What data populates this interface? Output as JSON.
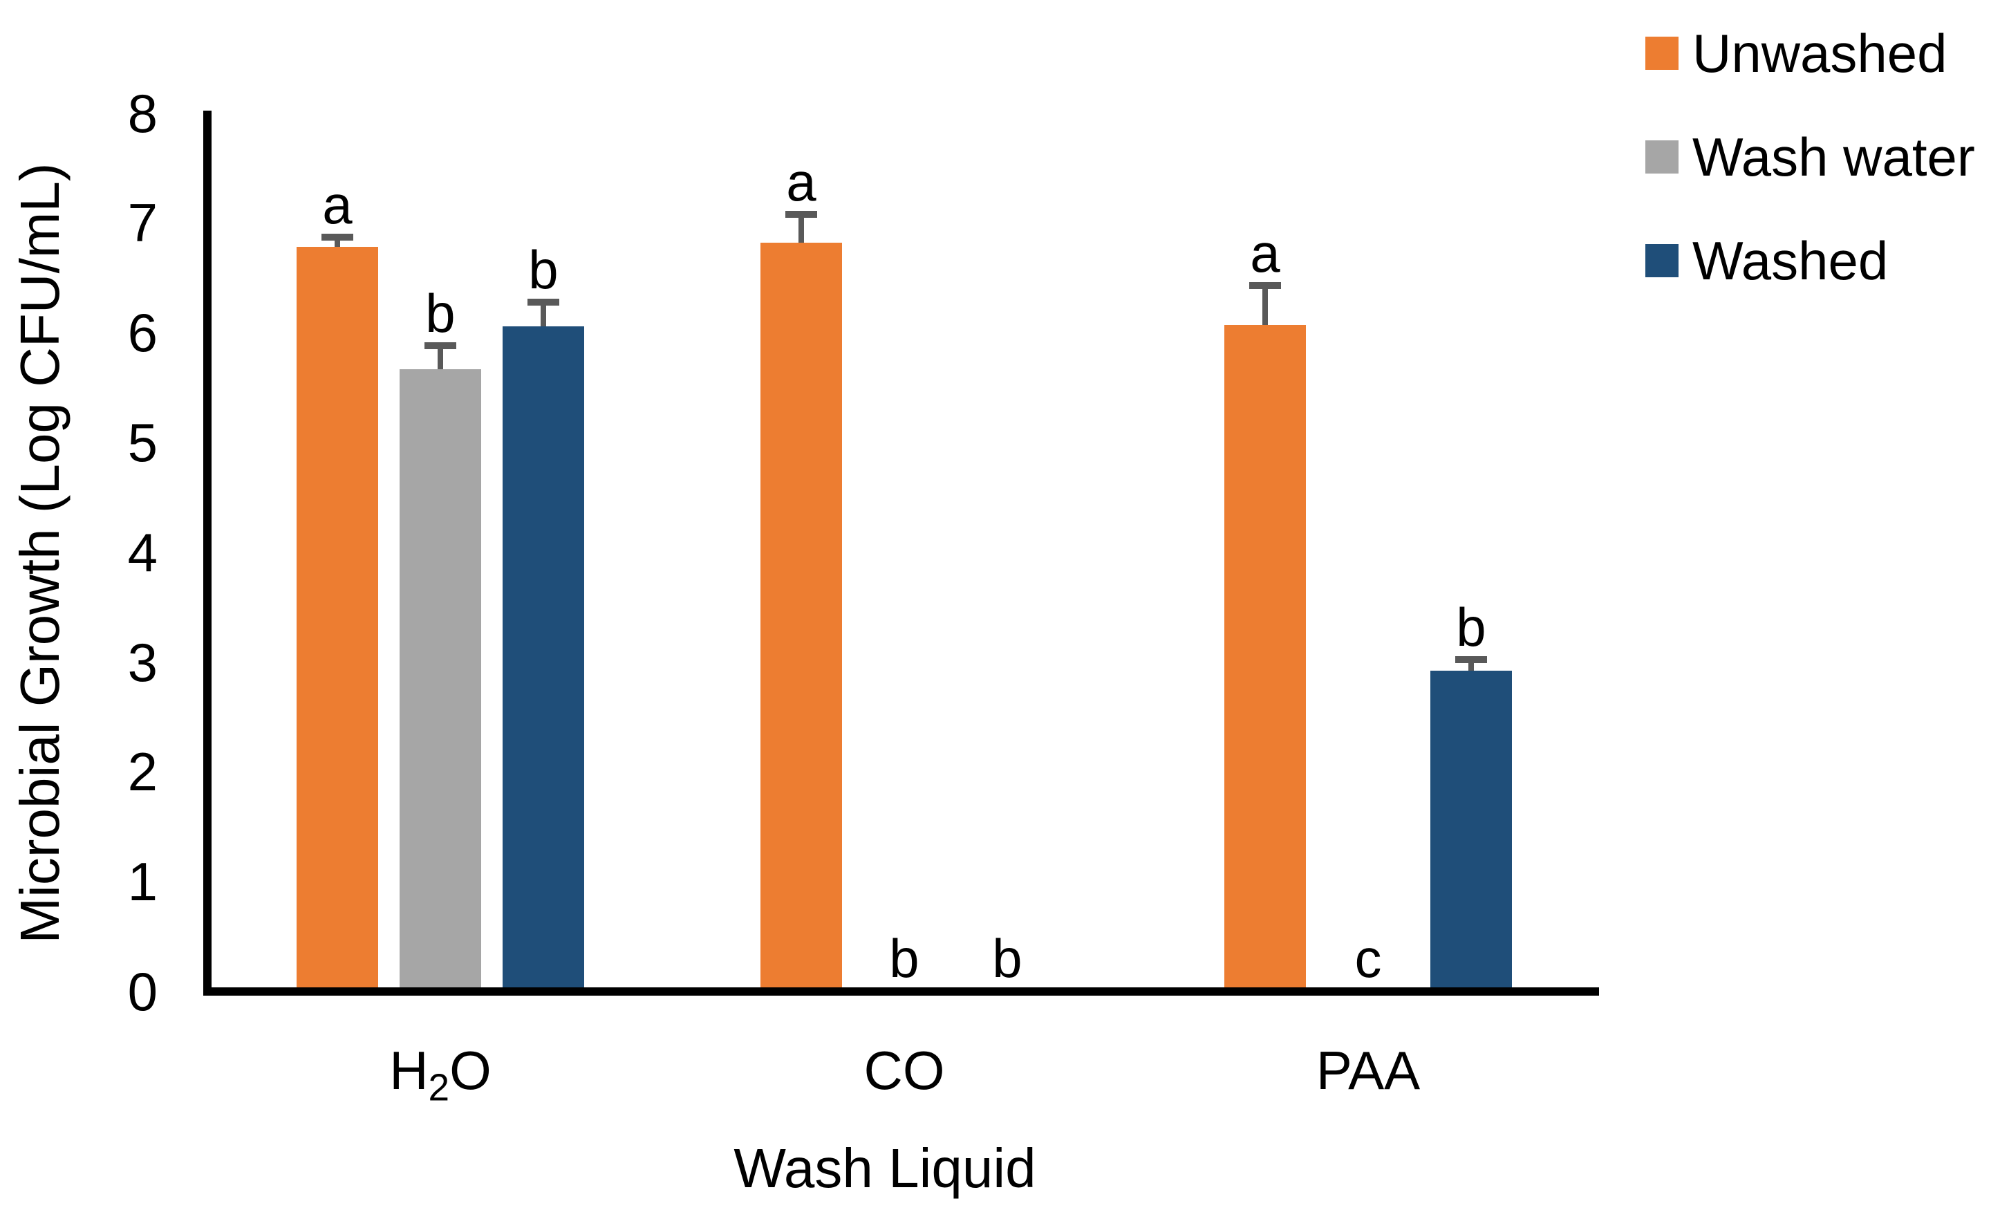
{
  "chart_data": {
    "type": "bar",
    "title": "",
    "xlabel": "Wash Liquid",
    "ylabel": "Microbial Growth (Log CFU/mL)",
    "ylim": [
      0,
      8
    ],
    "y_ticks": [
      8,
      7,
      6,
      5,
      4,
      3,
      2,
      1,
      0
    ],
    "grid": false,
    "legend_position": "top-right",
    "error_bar_color": "#595959",
    "axis_color": "#000000",
    "categories": [
      "H₂O",
      "CO",
      "PAA"
    ],
    "series": [
      {
        "name": "Unwashed",
        "color": "#ED7D31",
        "values": [
          6.78,
          6.82,
          6.07
        ],
        "errors": [
          0.09,
          0.26,
          0.36
        ],
        "letters": [
          "a",
          "a",
          "a"
        ]
      },
      {
        "name": "Wash water",
        "color": "#A6A6A6",
        "values": [
          5.67,
          0,
          0
        ],
        "errors": [
          0.21,
          null,
          null
        ],
        "letters": [
          "b",
          "b",
          "c"
        ]
      },
      {
        "name": "Washed",
        "color": "#1F4E79",
        "values": [
          6.06,
          0,
          2.92
        ],
        "errors": [
          0.22,
          null,
          0.1
        ],
        "letters": [
          "b",
          "b",
          "b"
        ]
      }
    ]
  }
}
